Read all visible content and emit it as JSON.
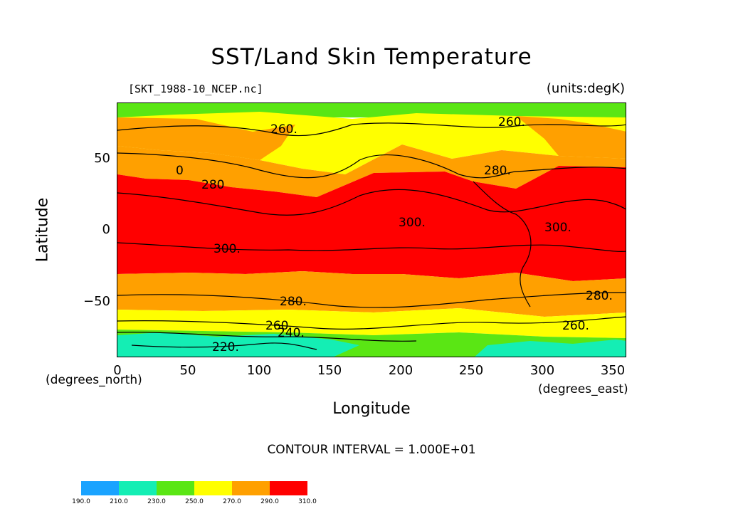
{
  "title": "SST/Land Skin Temperature",
  "subtitle_left": "[SKT_1988-10_NCEP.nc]",
  "subtitle_right": "(units:degK)",
  "y_axis": {
    "label": "Latitude",
    "note": "(degrees_north)",
    "ticks": [
      "50",
      "0",
      "−50"
    ]
  },
  "x_axis": {
    "label": "Longitude",
    "note": "(degrees_east)",
    "ticks": [
      "0",
      "50",
      "100",
      "150",
      "200",
      "250",
      "300",
      "350"
    ]
  },
  "contour_interval": "CONTOUR INTERVAL = 1.000E+01",
  "contour_labels": [
    "260.",
    "260.",
    "280.",
    "300.",
    "300.",
    "300.",
    "280.",
    "280.",
    "260.",
    "260.",
    "240.",
    "220.",
    "0",
    "280"
  ],
  "colorbar": {
    "labels": [
      "190.0",
      "210.0",
      "230.0",
      "250.0",
      "270.0",
      "290.0",
      "310.0"
    ],
    "colors": [
      "#1aa3ff",
      "#14eeb4",
      "#5ae614",
      "#ffff00",
      "#ffa000",
      "#ff0000"
    ]
  },
  "bands": {
    "arctic_cap": "#5ae614",
    "subpolar_north": "#ffff00",
    "midlat_north": "#ffa000",
    "tropics": "#ff0000",
    "midlat_south": "#ffa000",
    "subpolar_south": "#ffff00",
    "antarctic_margin": "#5ae614",
    "antarctica": "#14eeb4"
  }
}
